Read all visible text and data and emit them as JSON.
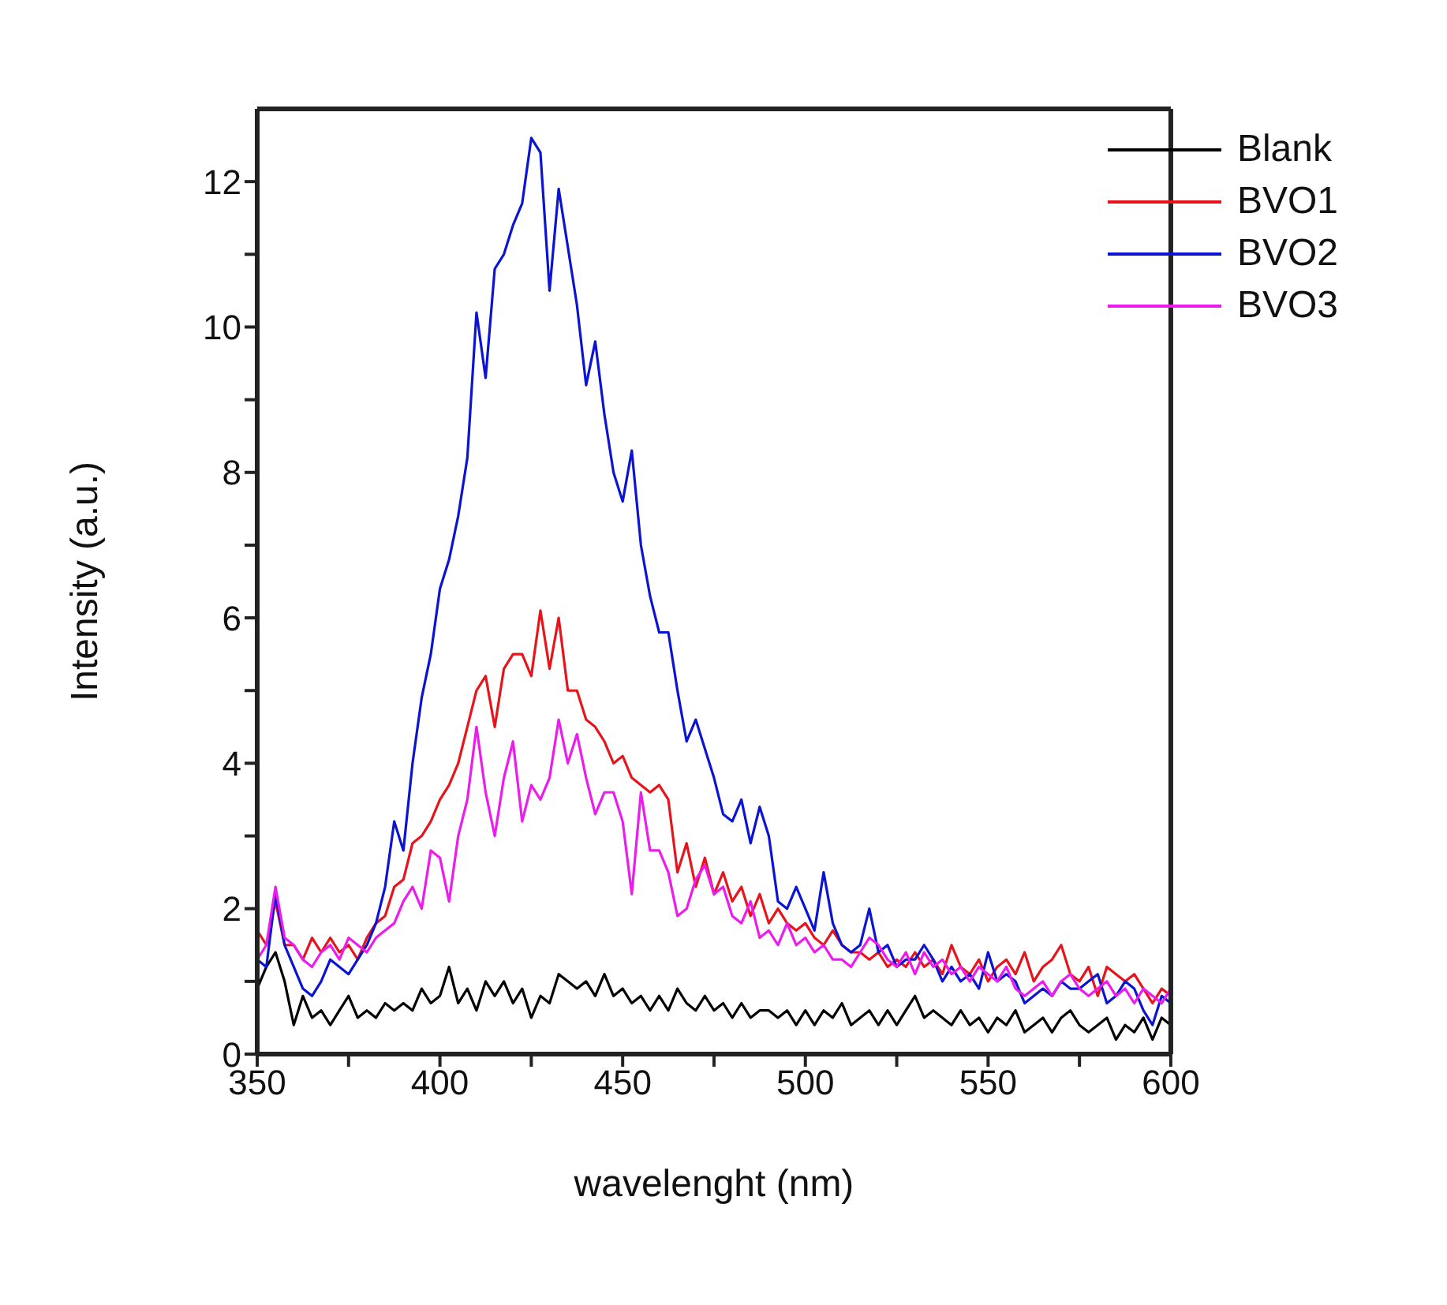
{
  "chart_data": {
    "type": "line",
    "xlabel": "wavelenght (nm)",
    "ylabel": "Intensity (a.u.)",
    "x": [
      350,
      352.5,
      355,
      357.5,
      360,
      362.5,
      365,
      367.5,
      370,
      372.5,
      375,
      377.5,
      380,
      382.5,
      385,
      387.5,
      390,
      392.5,
      395,
      397.5,
      400,
      402.5,
      405,
      407.5,
      410,
      412.5,
      415,
      417.5,
      420,
      422.5,
      425,
      427.5,
      430,
      432.5,
      435,
      437.5,
      440,
      442.5,
      445,
      447.5,
      450,
      452.5,
      455,
      457.5,
      460,
      462.5,
      465,
      467.5,
      470,
      472.5,
      475,
      477.5,
      480,
      482.5,
      485,
      487.5,
      490,
      492.5,
      495,
      497.5,
      500,
      502.5,
      505,
      507.5,
      510,
      512.5,
      515,
      517.5,
      520,
      522.5,
      525,
      527.5,
      530,
      532.5,
      535,
      537.5,
      540,
      542.5,
      545,
      547.5,
      550,
      552.5,
      555,
      557.5,
      560,
      562.5,
      565,
      567.5,
      570,
      572.5,
      575,
      577.5,
      580,
      582.5,
      585,
      587.5,
      590,
      592.5,
      595,
      597.5,
      600
    ],
    "series": [
      {
        "name": "Blank",
        "color": "#000000",
        "values": [
          0.9,
          1.2,
          1.4,
          1.0,
          0.4,
          0.8,
          0.5,
          0.6,
          0.4,
          0.6,
          0.8,
          0.5,
          0.6,
          0.5,
          0.7,
          0.6,
          0.7,
          0.6,
          0.9,
          0.7,
          0.8,
          1.2,
          0.7,
          0.9,
          0.6,
          1.0,
          0.8,
          1.0,
          0.7,
          0.9,
          0.5,
          0.8,
          0.7,
          1.1,
          1.0,
          0.9,
          1.0,
          0.8,
          1.1,
          0.8,
          0.9,
          0.7,
          0.8,
          0.6,
          0.8,
          0.6,
          0.9,
          0.7,
          0.6,
          0.8,
          0.6,
          0.7,
          0.5,
          0.7,
          0.5,
          0.6,
          0.6,
          0.5,
          0.6,
          0.4,
          0.6,
          0.4,
          0.6,
          0.5,
          0.7,
          0.4,
          0.5,
          0.6,
          0.4,
          0.6,
          0.4,
          0.6,
          0.8,
          0.5,
          0.6,
          0.5,
          0.4,
          0.6,
          0.4,
          0.5,
          0.3,
          0.5,
          0.4,
          0.6,
          0.3,
          0.4,
          0.5,
          0.3,
          0.5,
          0.6,
          0.4,
          0.3,
          0.4,
          0.5,
          0.2,
          0.4,
          0.3,
          0.5,
          0.2,
          0.5,
          0.4
        ]
      },
      {
        "name": "BVO1",
        "color": "#e8141b",
        "values": [
          1.7,
          1.5,
          2.1,
          1.5,
          1.5,
          1.3,
          1.6,
          1.4,
          1.6,
          1.4,
          1.5,
          1.3,
          1.6,
          1.8,
          1.9,
          2.3,
          2.4,
          2.9,
          3.0,
          3.2,
          3.5,
          3.7,
          4.0,
          4.5,
          5.0,
          5.2,
          4.5,
          5.3,
          5.5,
          5.5,
          5.2,
          6.1,
          5.3,
          6.0,
          5.0,
          5.0,
          4.6,
          4.5,
          4.3,
          4.0,
          4.1,
          3.8,
          3.7,
          3.6,
          3.7,
          3.5,
          2.5,
          2.9,
          2.3,
          2.7,
          2.2,
          2.5,
          2.1,
          2.3,
          1.9,
          2.2,
          1.8,
          2.0,
          1.8,
          1.7,
          1.8,
          1.6,
          1.5,
          1.7,
          1.5,
          1.4,
          1.4,
          1.3,
          1.4,
          1.2,
          1.3,
          1.2,
          1.4,
          1.2,
          1.3,
          1.1,
          1.5,
          1.2,
          1.1,
          1.3,
          1.0,
          1.2,
          1.3,
          1.1,
          1.4,
          1.0,
          1.2,
          1.3,
          1.5,
          1.1,
          1.0,
          1.2,
          0.8,
          1.2,
          1.1,
          1.0,
          1.1,
          0.9,
          0.7,
          0.9,
          0.8
        ]
      },
      {
        "name": "BVO2",
        "color": "#0a14d2",
        "values": [
          1.3,
          1.2,
          2.2,
          1.5,
          1.2,
          0.9,
          0.8,
          1.0,
          1.3,
          1.2,
          1.1,
          1.3,
          1.5,
          1.8,
          2.3,
          3.2,
          2.8,
          4.0,
          4.9,
          5.5,
          6.4,
          6.8,
          7.4,
          8.2,
          10.2,
          9.3,
          10.8,
          11.0,
          11.4,
          11.7,
          12.6,
          12.4,
          10.5,
          11.9,
          11.1,
          10.3,
          9.2,
          9.8,
          8.8,
          8.0,
          7.6,
          8.3,
          7.0,
          6.3,
          5.8,
          5.8,
          5.0,
          4.3,
          4.6,
          4.2,
          3.8,
          3.3,
          3.2,
          3.5,
          2.9,
          3.4,
          3.0,
          2.1,
          2.0,
          2.3,
          2.0,
          1.7,
          2.5,
          1.8,
          1.5,
          1.4,
          1.5,
          2.0,
          1.4,
          1.5,
          1.2,
          1.3,
          1.3,
          1.5,
          1.3,
          1.0,
          1.2,
          1.0,
          1.1,
          0.9,
          1.4,
          1.0,
          1.1,
          1.0,
          0.7,
          0.8,
          0.9,
          0.8,
          1.0,
          0.9,
          0.9,
          1.0,
          1.1,
          0.7,
          0.8,
          1.0,
          0.9,
          0.6,
          0.4,
          0.8,
          0.7
        ]
      },
      {
        "name": "BVO3",
        "color": "#ec1cec",
        "values": [
          1.3,
          1.5,
          2.3,
          1.6,
          1.5,
          1.3,
          1.2,
          1.4,
          1.5,
          1.3,
          1.6,
          1.5,
          1.4,
          1.6,
          1.7,
          1.8,
          2.1,
          2.3,
          2.0,
          2.8,
          2.7,
          2.1,
          3.0,
          3.5,
          4.5,
          3.6,
          3.0,
          3.8,
          4.3,
          3.2,
          3.7,
          3.5,
          3.8,
          4.6,
          4.0,
          4.4,
          3.8,
          3.3,
          3.6,
          3.6,
          3.2,
          2.2,
          3.6,
          2.8,
          2.8,
          2.5,
          1.9,
          2.0,
          2.4,
          2.6,
          2.2,
          2.3,
          1.9,
          1.8,
          2.1,
          1.6,
          1.7,
          1.5,
          1.8,
          1.5,
          1.6,
          1.4,
          1.5,
          1.3,
          1.3,
          1.2,
          1.4,
          1.6,
          1.5,
          1.3,
          1.2,
          1.4,
          1.1,
          1.4,
          1.2,
          1.3,
          1.1,
          1.2,
          1.0,
          1.2,
          1.1,
          1.0,
          1.2,
          0.9,
          0.8,
          0.9,
          1.0,
          0.8,
          1.0,
          1.1,
          0.9,
          0.8,
          0.9,
          1.0,
          0.8,
          0.9,
          0.7,
          0.9,
          0.8,
          0.7,
          0.9
        ]
      }
    ],
    "xlim": [
      350,
      600
    ],
    "xticks": [
      350,
      {
        "value": 375,
        "label": null
      },
      400,
      {
        "value": 425,
        "label": null
      },
      450,
      {
        "value": 475,
        "label": null
      },
      500,
      {
        "value": 525,
        "label": null
      },
      550,
      {
        "value": 575,
        "label": null
      },
      600
    ],
    "ylim": [
      0,
      13
    ],
    "yticks": [
      0,
      {
        "value": 1,
        "label": null
      },
      2,
      {
        "value": 3,
        "label": null
      },
      4,
      {
        "value": 5,
        "label": null
      },
      6,
      {
        "value": 7,
        "label": null
      },
      8,
      {
        "value": 9,
        "label": null
      },
      10,
      {
        "value": 11,
        "label": null
      },
      12
    ],
    "grid": false,
    "legend": "top right",
    "marker": "none",
    "line_style": "solid"
  }
}
